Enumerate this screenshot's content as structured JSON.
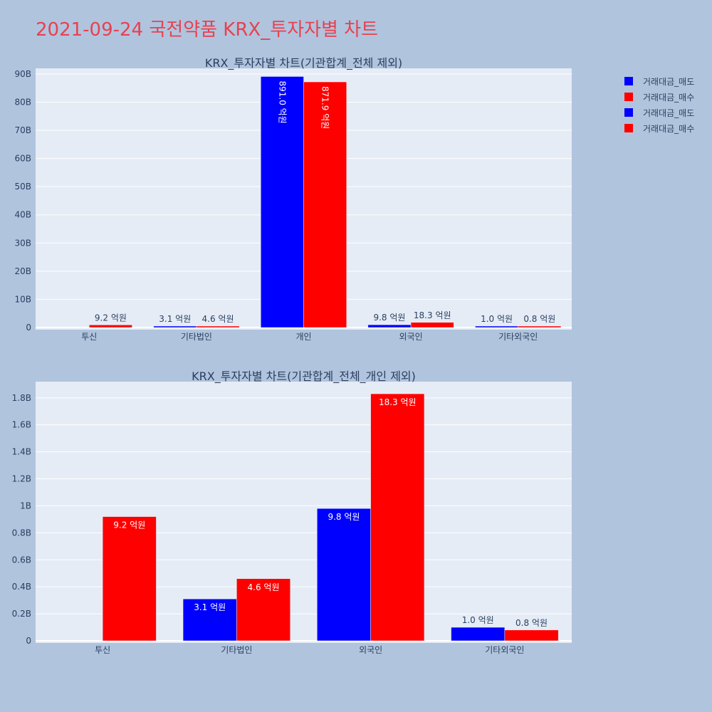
{
  "title": "2021-09-24 국전약품 KRX_투자자별 차트",
  "legend": [
    {
      "name": "거래대금_매도",
      "color": "#0000ff"
    },
    {
      "name": "거래대금_매수",
      "color": "#ff0000"
    },
    {
      "name": "거래대금_매도",
      "color": "#0000ff"
    },
    {
      "name": "거래대금_매수",
      "color": "#ff0000"
    }
  ],
  "colors": {
    "sell": "#0000ff",
    "buy": "#ff0000",
    "plot_bg": "#e5ecf6",
    "page_bg": "#b0c4de",
    "title": "#e8414f"
  },
  "chart_data": [
    {
      "type": "bar",
      "title": "KRX_투자자별 차트(기관합계_전체 제외)",
      "categories": [
        "투신",
        "기타법인",
        "개인",
        "외국인",
        "기타외국인"
      ],
      "series": [
        {
          "name": "거래대금_매도",
          "values": [
            0,
            0.31,
            89.1,
            0.98,
            0.1
          ],
          "labels": [
            "",
            "3.1 억원",
            "891.0 억원",
            "9.8 억원",
            "1.0 억원"
          ]
        },
        {
          "name": "거래대금_매수",
          "values": [
            0.92,
            0.46,
            87.19,
            1.83,
            0.08
          ],
          "labels": [
            "9.2 억원",
            "4.6 억원",
            "871.9 억원",
            "18.3 억원",
            "0.8 억원"
          ]
        }
      ],
      "ylim": [
        0,
        92
      ],
      "yticks": [
        0,
        10,
        20,
        30,
        40,
        50,
        60,
        70,
        80,
        90
      ],
      "ytick_labels": [
        "0",
        "10B",
        "20B",
        "30B",
        "40B",
        "50B",
        "60B",
        "70B",
        "80B",
        "90B"
      ]
    },
    {
      "type": "bar",
      "title": "KRX_투자자별 차트(기관합계_전체_개인 제외)",
      "categories": [
        "투신",
        "기타법인",
        "외국인",
        "기타외국인"
      ],
      "series": [
        {
          "name": "거래대금_매도",
          "values": [
            0,
            0.31,
            0.98,
            0.1
          ],
          "labels": [
            "",
            "3.1 억원",
            "9.8 억원",
            "1.0 억원"
          ]
        },
        {
          "name": "거래대금_매수",
          "values": [
            0.92,
            0.46,
            1.83,
            0.08
          ],
          "labels": [
            "9.2 억원",
            "4.6 억원",
            "18.3 억원",
            "0.8 억원"
          ]
        }
      ],
      "ylim": [
        0,
        1.92
      ],
      "yticks": [
        0,
        0.2,
        0.4,
        0.6,
        0.8,
        1.0,
        1.2,
        1.4,
        1.6,
        1.8
      ],
      "ytick_labels": [
        "0",
        "0.2B",
        "0.4B",
        "0.6B",
        "0.8B",
        "1B",
        "1.2B",
        "1.4B",
        "1.6B",
        "1.8B"
      ]
    }
  ]
}
